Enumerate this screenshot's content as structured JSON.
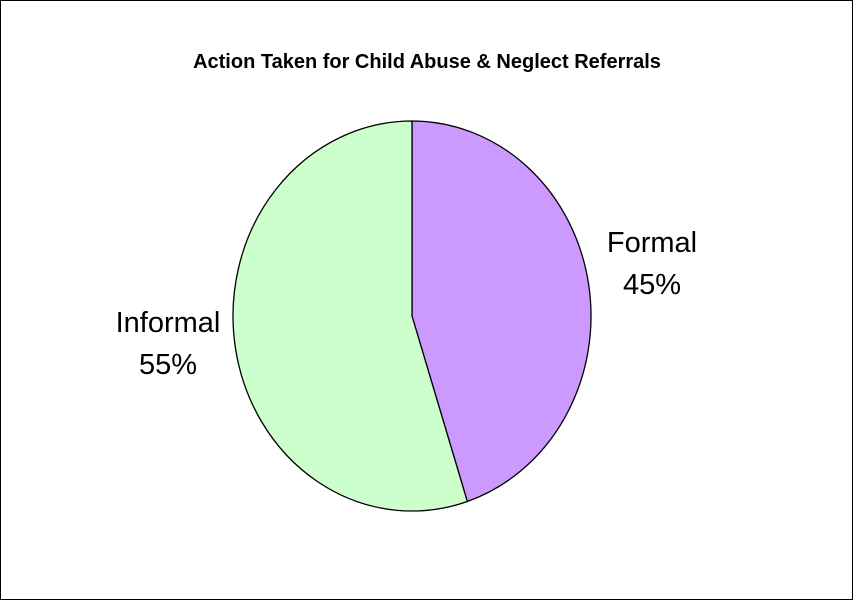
{
  "chart_data": {
    "type": "pie",
    "title": "Action Taken for Child Abuse & Neglect Referrals",
    "slices": [
      {
        "label": "Formal",
        "value": 45,
        "value_label": "45%",
        "color": "#cc99ff"
      },
      {
        "label": "Informal",
        "value": 55,
        "value_label": "55%",
        "color": "#ccffcc"
      }
    ],
    "start_angle": "12 o'clock",
    "direction": "clockwise"
  }
}
